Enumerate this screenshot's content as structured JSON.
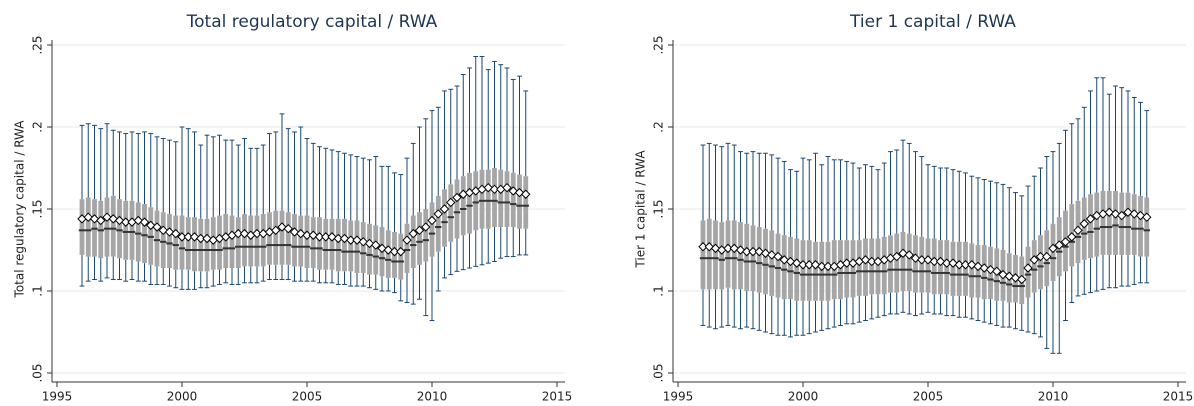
{
  "chart_data": [
    {
      "type": "box",
      "title": "Total regulatory capital / RWA",
      "y_label": "Total regulatory capital / RWA",
      "xlim": [
        1995,
        2015
      ],
      "xticks": [
        1995,
        2000,
        2005,
        2010,
        2015
      ],
      "ylim": [
        0.05,
        0.25
      ],
      "yticks": [
        {
          "value": 0.05,
          "label": ".05"
        },
        {
          "value": 0.1,
          "label": ".1"
        },
        {
          "value": 0.15,
          "label": ".15"
        },
        {
          "value": 0.2,
          "label": ".2"
        },
        {
          "value": 0.25,
          "label": ".25"
        }
      ],
      "grid": true,
      "box_color": "#a6a6a6",
      "whisker_color": "#1a476f",
      "median_color": "#333333",
      "mean_color": "#000000",
      "x": [
        1996,
        1996.25,
        1996.5,
        1996.75,
        1997,
        1997.25,
        1997.5,
        1997.75,
        1998,
        1998.25,
        1998.5,
        1998.75,
        1999,
        1999.25,
        1999.5,
        1999.75,
        2000,
        2000.25,
        2000.5,
        2000.75,
        2001,
        2001.25,
        2001.5,
        2001.75,
        2002,
        2002.25,
        2002.5,
        2002.75,
        2003,
        2003.25,
        2003.5,
        2003.75,
        2004,
        2004.25,
        2004.5,
        2004.75,
        2005,
        2005.25,
        2005.5,
        2005.75,
        2006,
        2006.25,
        2006.5,
        2006.75,
        2007,
        2007.25,
        2007.5,
        2007.75,
        2008,
        2008.25,
        2008.5,
        2008.75,
        2009,
        2009.25,
        2009.5,
        2009.75,
        2010,
        2010.25,
        2010.5,
        2010.75,
        2011,
        2011.25,
        2011.5,
        2011.75,
        2012,
        2012.25,
        2012.5,
        2012.75,
        2013,
        2013.25,
        2013.5,
        2013.75
      ],
      "high": [
        0.201,
        0.202,
        0.201,
        0.199,
        0.202,
        0.198,
        0.197,
        0.196,
        0.197,
        0.196,
        0.197,
        0.196,
        0.194,
        0.193,
        0.192,
        0.191,
        0.2,
        0.199,
        0.197,
        0.189,
        0.195,
        0.194,
        0.195,
        0.192,
        0.192,
        0.189,
        0.193,
        0.187,
        0.187,
        0.189,
        0.196,
        0.197,
        0.208,
        0.199,
        0.197,
        0.2,
        0.193,
        0.19,
        0.188,
        0.187,
        0.186,
        0.185,
        0.184,
        0.183,
        0.182,
        0.181,
        0.18,
        0.182,
        0.176,
        0.176,
        0.172,
        0.171,
        0.181,
        0.19,
        0.2,
        0.205,
        0.21,
        0.212,
        0.222,
        0.223,
        0.225,
        0.232,
        0.236,
        0.243,
        0.243,
        0.235,
        0.24,
        0.238,
        0.236,
        0.229,
        0.231,
        0.222
      ],
      "q3": [
        0.156,
        0.157,
        0.156,
        0.155,
        0.157,
        0.158,
        0.156,
        0.155,
        0.155,
        0.154,
        0.153,
        0.151,
        0.149,
        0.148,
        0.147,
        0.146,
        0.146,
        0.145,
        0.145,
        0.144,
        0.144,
        0.145,
        0.146,
        0.147,
        0.146,
        0.145,
        0.147,
        0.146,
        0.146,
        0.147,
        0.148,
        0.149,
        0.149,
        0.148,
        0.147,
        0.146,
        0.146,
        0.145,
        0.145,
        0.144,
        0.144,
        0.144,
        0.144,
        0.143,
        0.143,
        0.142,
        0.141,
        0.14,
        0.139,
        0.137,
        0.136,
        0.135,
        0.141,
        0.146,
        0.148,
        0.15,
        0.154,
        0.158,
        0.162,
        0.165,
        0.168,
        0.17,
        0.172,
        0.173,
        0.174,
        0.174,
        0.175,
        0.174,
        0.173,
        0.172,
        0.171,
        0.17
      ],
      "median": [
        0.137,
        0.137,
        0.138,
        0.137,
        0.138,
        0.138,
        0.137,
        0.136,
        0.136,
        0.135,
        0.134,
        0.133,
        0.131,
        0.13,
        0.129,
        0.128,
        0.126,
        0.125,
        0.125,
        0.125,
        0.125,
        0.125,
        0.125,
        0.126,
        0.126,
        0.127,
        0.127,
        0.127,
        0.127,
        0.127,
        0.128,
        0.128,
        0.128,
        0.128,
        0.127,
        0.127,
        0.127,
        0.126,
        0.126,
        0.125,
        0.125,
        0.125,
        0.124,
        0.124,
        0.124,
        0.123,
        0.122,
        0.121,
        0.12,
        0.119,
        0.118,
        0.118,
        0.125,
        0.128,
        0.13,
        0.131,
        0.135,
        0.139,
        0.142,
        0.145,
        0.148,
        0.15,
        0.152,
        0.154,
        0.155,
        0.155,
        0.155,
        0.154,
        0.154,
        0.153,
        0.152,
        0.152
      ],
      "q1": [
        0.122,
        0.121,
        0.121,
        0.12,
        0.121,
        0.121,
        0.12,
        0.119,
        0.119,
        0.118,
        0.117,
        0.116,
        0.115,
        0.114,
        0.114,
        0.113,
        0.113,
        0.113,
        0.112,
        0.112,
        0.112,
        0.113,
        0.113,
        0.114,
        0.114,
        0.114,
        0.115,
        0.115,
        0.115,
        0.115,
        0.116,
        0.116,
        0.116,
        0.116,
        0.115,
        0.115,
        0.114,
        0.114,
        0.113,
        0.113,
        0.113,
        0.112,
        0.112,
        0.112,
        0.111,
        0.111,
        0.11,
        0.11,
        0.109,
        0.108,
        0.108,
        0.107,
        0.111,
        0.114,
        0.116,
        0.118,
        0.121,
        0.124,
        0.127,
        0.13,
        0.132,
        0.134,
        0.135,
        0.137,
        0.138,
        0.138,
        0.139,
        0.139,
        0.139,
        0.139,
        0.138,
        0.138
      ],
      "low": [
        0.103,
        0.106,
        0.107,
        0.106,
        0.108,
        0.107,
        0.107,
        0.106,
        0.107,
        0.106,
        0.106,
        0.104,
        0.104,
        0.104,
        0.103,
        0.102,
        0.101,
        0.101,
        0.101,
        0.102,
        0.102,
        0.103,
        0.104,
        0.105,
        0.104,
        0.104,
        0.105,
        0.105,
        0.105,
        0.106,
        0.107,
        0.107,
        0.107,
        0.107,
        0.106,
        0.106,
        0.106,
        0.106,
        0.105,
        0.105,
        0.105,
        0.104,
        0.104,
        0.103,
        0.103,
        0.103,
        0.102,
        0.101,
        0.1,
        0.1,
        0.099,
        0.094,
        0.093,
        0.092,
        0.095,
        0.085,
        0.082,
        0.1,
        0.108,
        0.11,
        0.112,
        0.113,
        0.114,
        0.115,
        0.116,
        0.117,
        0.118,
        0.12,
        0.121,
        0.121,
        0.122,
        0.122
      ],
      "mean": [
        0.144,
        0.145,
        0.144,
        0.143,
        0.145,
        0.144,
        0.143,
        0.142,
        0.142,
        0.143,
        0.142,
        0.14,
        0.139,
        0.137,
        0.136,
        0.135,
        0.133,
        0.133,
        0.133,
        0.132,
        0.132,
        0.131,
        0.132,
        0.133,
        0.134,
        0.135,
        0.135,
        0.134,
        0.135,
        0.135,
        0.136,
        0.137,
        0.139,
        0.138,
        0.136,
        0.135,
        0.134,
        0.134,
        0.133,
        0.133,
        0.133,
        0.132,
        0.132,
        0.131,
        0.131,
        0.13,
        0.129,
        0.128,
        0.126,
        0.125,
        0.124,
        0.124,
        0.131,
        0.135,
        0.137,
        0.139,
        0.143,
        0.147,
        0.15,
        0.154,
        0.157,
        0.159,
        0.16,
        0.161,
        0.162,
        0.163,
        0.162,
        0.162,
        0.163,
        0.161,
        0.16,
        0.159
      ]
    },
    {
      "type": "box",
      "title": "Tier 1 capital / RWA",
      "y_label": "Tier 1 capital / RWA",
      "xlim": [
        1995,
        2015
      ],
      "xticks": [
        1995,
        2000,
        2005,
        2010,
        2015
      ],
      "ylim": [
        0.05,
        0.25
      ],
      "yticks": [
        {
          "value": 0.05,
          "label": ".05"
        },
        {
          "value": 0.1,
          "label": ".1"
        },
        {
          "value": 0.15,
          "label": ".15"
        },
        {
          "value": 0.2,
          "label": ".2"
        },
        {
          "value": 0.25,
          "label": ".25"
        }
      ],
      "grid": true,
      "box_color": "#a6a6a6",
      "whisker_color": "#1a476f",
      "median_color": "#333333",
      "mean_color": "#000000",
      "x": [
        1996,
        1996.25,
        1996.5,
        1996.75,
        1997,
        1997.25,
        1997.5,
        1997.75,
        1998,
        1998.25,
        1998.5,
        1998.75,
        1999,
        1999.25,
        1999.5,
        1999.75,
        2000,
        2000.25,
        2000.5,
        2000.75,
        2001,
        2001.25,
        2001.5,
        2001.75,
        2002,
        2002.25,
        2002.5,
        2002.75,
        2003,
        2003.25,
        2003.5,
        2003.75,
        2004,
        2004.25,
        2004.5,
        2004.75,
        2005,
        2005.25,
        2005.5,
        2005.75,
        2006,
        2006.25,
        2006.5,
        2006.75,
        2007,
        2007.25,
        2007.5,
        2007.75,
        2008,
        2008.25,
        2008.5,
        2008.75,
        2009,
        2009.25,
        2009.5,
        2009.75,
        2010,
        2010.25,
        2010.5,
        2010.75,
        2011,
        2011.25,
        2011.5,
        2011.75,
        2012,
        2012.25,
        2012.5,
        2012.75,
        2013,
        2013.25,
        2013.5,
        2013.75
      ],
      "high": [
        0.189,
        0.19,
        0.189,
        0.188,
        0.19,
        0.189,
        0.185,
        0.184,
        0.185,
        0.184,
        0.184,
        0.183,
        0.181,
        0.179,
        0.174,
        0.173,
        0.181,
        0.18,
        0.184,
        0.177,
        0.182,
        0.18,
        0.18,
        0.179,
        0.178,
        0.175,
        0.177,
        0.176,
        0.174,
        0.178,
        0.185,
        0.186,
        0.192,
        0.19,
        0.185,
        0.182,
        0.177,
        0.176,
        0.175,
        0.175,
        0.174,
        0.173,
        0.172,
        0.17,
        0.169,
        0.168,
        0.167,
        0.166,
        0.165,
        0.163,
        0.16,
        0.158,
        0.164,
        0.17,
        0.175,
        0.182,
        0.185,
        0.19,
        0.198,
        0.202,
        0.205,
        0.212,
        0.222,
        0.23,
        0.23,
        0.22,
        0.225,
        0.224,
        0.222,
        0.218,
        0.215,
        0.21
      ],
      "q3": [
        0.143,
        0.144,
        0.143,
        0.142,
        0.143,
        0.143,
        0.142,
        0.141,
        0.14,
        0.139,
        0.138,
        0.137,
        0.135,
        0.134,
        0.133,
        0.132,
        0.131,
        0.131,
        0.13,
        0.13,
        0.13,
        0.131,
        0.131,
        0.131,
        0.131,
        0.131,
        0.132,
        0.132,
        0.132,
        0.133,
        0.134,
        0.135,
        0.136,
        0.135,
        0.134,
        0.133,
        0.132,
        0.132,
        0.131,
        0.131,
        0.13,
        0.13,
        0.13,
        0.129,
        0.128,
        0.128,
        0.127,
        0.126,
        0.125,
        0.123,
        0.122,
        0.121,
        0.127,
        0.131,
        0.134,
        0.137,
        0.141,
        0.145,
        0.149,
        0.153,
        0.155,
        0.157,
        0.159,
        0.16,
        0.161,
        0.161,
        0.161,
        0.16,
        0.16,
        0.159,
        0.158,
        0.157
      ],
      "median": [
        0.12,
        0.12,
        0.12,
        0.119,
        0.12,
        0.12,
        0.119,
        0.118,
        0.118,
        0.117,
        0.116,
        0.115,
        0.114,
        0.113,
        0.112,
        0.111,
        0.11,
        0.11,
        0.11,
        0.11,
        0.11,
        0.11,
        0.111,
        0.111,
        0.111,
        0.112,
        0.112,
        0.112,
        0.112,
        0.112,
        0.113,
        0.113,
        0.113,
        0.113,
        0.112,
        0.112,
        0.112,
        0.111,
        0.111,
        0.111,
        0.11,
        0.11,
        0.11,
        0.109,
        0.109,
        0.108,
        0.107,
        0.106,
        0.105,
        0.104,
        0.103,
        0.103,
        0.11,
        0.113,
        0.115,
        0.117,
        0.12,
        0.124,
        0.127,
        0.13,
        0.133,
        0.135,
        0.136,
        0.138,
        0.139,
        0.139,
        0.14,
        0.139,
        0.139,
        0.138,
        0.138,
        0.137
      ],
      "q1": [
        0.101,
        0.101,
        0.101,
        0.101,
        0.102,
        0.101,
        0.101,
        0.1,
        0.1,
        0.099,
        0.098,
        0.097,
        0.096,
        0.095,
        0.095,
        0.094,
        0.094,
        0.094,
        0.094,
        0.094,
        0.094,
        0.095,
        0.095,
        0.096,
        0.096,
        0.097,
        0.097,
        0.098,
        0.098,
        0.098,
        0.099,
        0.099,
        0.1,
        0.1,
        0.099,
        0.099,
        0.099,
        0.098,
        0.098,
        0.098,
        0.097,
        0.097,
        0.097,
        0.096,
        0.096,
        0.095,
        0.095,
        0.094,
        0.094,
        0.093,
        0.093,
        0.092,
        0.096,
        0.099,
        0.101,
        0.103,
        0.106,
        0.109,
        0.112,
        0.115,
        0.117,
        0.119,
        0.12,
        0.121,
        0.122,
        0.122,
        0.122,
        0.122,
        0.122,
        0.122,
        0.121,
        0.121
      ],
      "low": [
        0.079,
        0.078,
        0.077,
        0.078,
        0.079,
        0.078,
        0.077,
        0.078,
        0.077,
        0.076,
        0.075,
        0.074,
        0.073,
        0.073,
        0.072,
        0.073,
        0.073,
        0.074,
        0.075,
        0.076,
        0.077,
        0.078,
        0.079,
        0.08,
        0.08,
        0.081,
        0.082,
        0.083,
        0.084,
        0.085,
        0.086,
        0.086,
        0.087,
        0.086,
        0.085,
        0.086,
        0.087,
        0.086,
        0.086,
        0.085,
        0.085,
        0.084,
        0.084,
        0.083,
        0.082,
        0.081,
        0.08,
        0.079,
        0.078,
        0.078,
        0.077,
        0.076,
        0.075,
        0.074,
        0.072,
        0.065,
        0.062,
        0.062,
        0.082,
        0.093,
        0.097,
        0.098,
        0.099,
        0.1,
        0.101,
        0.102,
        0.102,
        0.103,
        0.103,
        0.104,
        0.105,
        0.105
      ],
      "mean": [
        0.127,
        0.127,
        0.126,
        0.125,
        0.126,
        0.126,
        0.125,
        0.124,
        0.124,
        0.124,
        0.123,
        0.122,
        0.121,
        0.119,
        0.118,
        0.117,
        0.116,
        0.116,
        0.116,
        0.115,
        0.115,
        0.115,
        0.116,
        0.117,
        0.117,
        0.118,
        0.119,
        0.118,
        0.118,
        0.119,
        0.12,
        0.121,
        0.123,
        0.122,
        0.12,
        0.119,
        0.119,
        0.118,
        0.118,
        0.117,
        0.117,
        0.116,
        0.116,
        0.116,
        0.115,
        0.114,
        0.113,
        0.112,
        0.11,
        0.109,
        0.108,
        0.107,
        0.114,
        0.119,
        0.121,
        0.121,
        0.126,
        0.128,
        0.13,
        0.133,
        0.137,
        0.141,
        0.144,
        0.146,
        0.147,
        0.148,
        0.147,
        0.146,
        0.148,
        0.147,
        0.146,
        0.145
      ]
    }
  ]
}
